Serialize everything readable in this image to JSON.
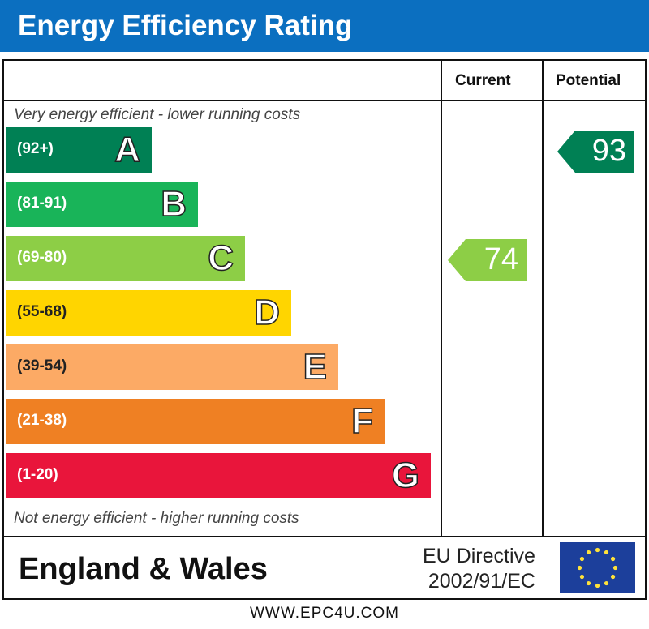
{
  "title": "Energy Efficiency Rating",
  "chart_data": {
    "type": "bar",
    "title": "Energy Efficiency Rating",
    "columns": [
      "Current",
      "Potential"
    ],
    "top_note": "Very energy efficient - lower running costs",
    "bottom_note": "Not energy efficient - higher running costs",
    "bands": [
      {
        "letter": "A",
        "range": "(92+)",
        "color": "#008054"
      },
      {
        "letter": "B",
        "range": "(81-91)",
        "color": "#19b459"
      },
      {
        "letter": "C",
        "range": "(69-80)",
        "color": "#8dce46"
      },
      {
        "letter": "D",
        "range": "(55-68)",
        "color": "#ffd500"
      },
      {
        "letter": "E",
        "range": "(39-54)",
        "color": "#fcaa65"
      },
      {
        "letter": "F",
        "range": "(21-38)",
        "color": "#ef8023"
      },
      {
        "letter": "G",
        "range": "(1-20)",
        "color": "#e9153b"
      }
    ],
    "current": {
      "value": 74,
      "band": "C"
    },
    "potential": {
      "value": 93,
      "band": "A"
    }
  },
  "footer": {
    "region": "England & Wales",
    "directive_line1": "EU Directive",
    "directive_line2": "2002/91/EC",
    "flag": "eu-flag-icon"
  },
  "watermark": "WWW.EPC4U.COM"
}
